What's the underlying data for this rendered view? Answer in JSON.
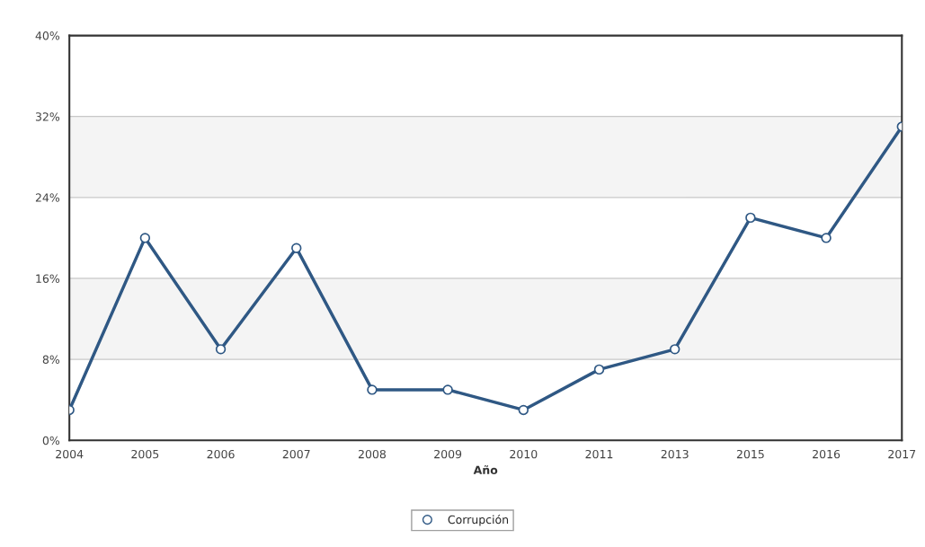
{
  "chart_data": {
    "type": "line",
    "xlabel": "Año",
    "categories": [
      "2004",
      "2005",
      "2006",
      "2007",
      "2008",
      "2009",
      "2010",
      "2011",
      "2013",
      "2015",
      "2016",
      "2017"
    ],
    "series": [
      {
        "name": "Corrupción",
        "color": "#2f5884",
        "values": [
          3,
          20,
          9,
          19,
          5,
          5,
          3,
          7,
          9,
          22,
          20,
          31
        ]
      }
    ],
    "ylim": [
      0,
      40
    ],
    "yticks": [
      {
        "value": 0,
        "label": "0%"
      },
      {
        "value": 8,
        "label": "8%"
      },
      {
        "value": 16,
        "label": "16%"
      },
      {
        "value": 24,
        "label": "24%"
      },
      {
        "value": 32,
        "label": "32%"
      },
      {
        "value": 40,
        "label": "40%"
      }
    ],
    "bands": [
      {
        "axis": "y",
        "from": 8,
        "to": 16,
        "color": "#f4f4f4"
      },
      {
        "axis": "y",
        "from": 24,
        "to": 32,
        "color": "#f4f4f4"
      }
    ],
    "grid": "y",
    "legend": "bottom",
    "marker": "circle",
    "line_style": "solid"
  }
}
